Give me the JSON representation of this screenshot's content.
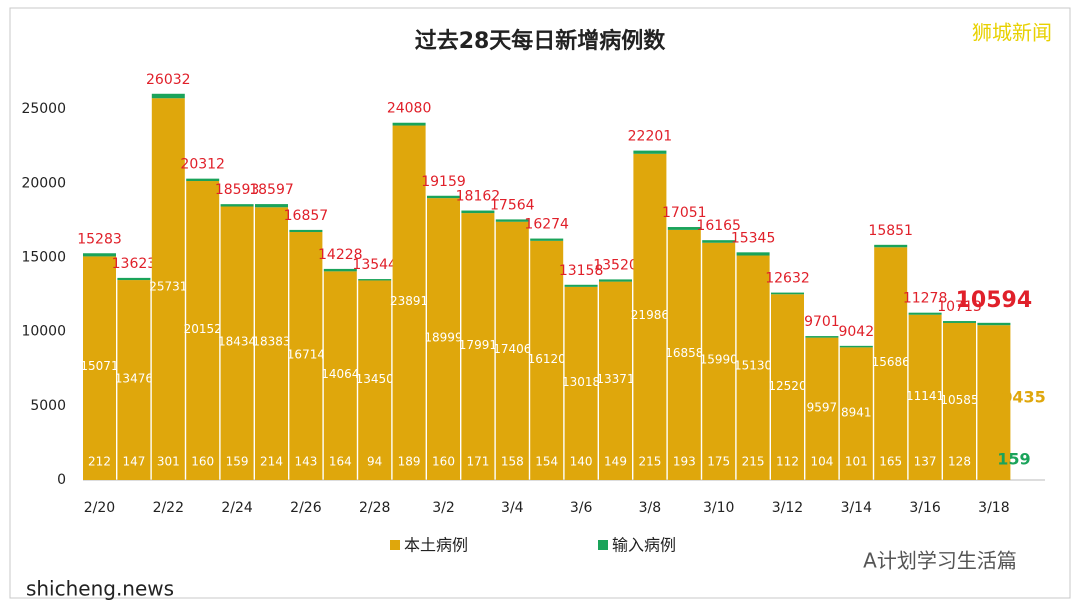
{
  "chart_data": {
    "type": "stacked-bar",
    "title": "过去28天每日新增病例数",
    "categories": [
      "2/20",
      null,
      "2/22",
      null,
      "2/24",
      null,
      "2/26",
      null,
      "2/28",
      null,
      "3/2",
      null,
      "3/4",
      null,
      "3/6",
      null,
      "3/8",
      null,
      "3/10",
      null,
      "3/12",
      null,
      "3/14",
      null,
      "3/16",
      null,
      "3/18"
    ],
    "series": [
      {
        "name": "本土病例",
        "color": "#dfa70c",
        "values": [
          15071,
          13476,
          25731,
          20152,
          18434,
          18383,
          16714,
          14064,
          13450,
          23891,
          18999,
          17991,
          17406,
          16120,
          13018,
          13371,
          21986,
          16858,
          15990,
          15130,
          12520,
          9597,
          8941,
          15686,
          11141,
          10585,
          10435
        ]
      },
      {
        "name": "输入病例",
        "color": "#1aa35a",
        "values": [
          212,
          147,
          301,
          160,
          159,
          214,
          143,
          164,
          94,
          189,
          160,
          171,
          158,
          154,
          140,
          149,
          215,
          193,
          175,
          215,
          112,
          104,
          101,
          165,
          137,
          128,
          159
        ]
      }
    ],
    "totals": [
      15283,
      13623,
      26032,
      20312,
      18593,
      18597,
      16857,
      14228,
      13544,
      24080,
      19159,
      18162,
      17564,
      16274,
      13158,
      13520,
      22201,
      17051,
      16165,
      15345,
      12632,
      9701,
      9042,
      15851,
      11278,
      10713,
      10594
    ],
    "ylim": [
      0,
      27500
    ],
    "yticks": [
      0,
      5000,
      10000,
      15000,
      20000,
      25000
    ],
    "grid": false,
    "legend": "bottom",
    "watermarks": [
      "狮城新闻",
      "A计划学习生活篇",
      "shicheng.news"
    ]
  }
}
